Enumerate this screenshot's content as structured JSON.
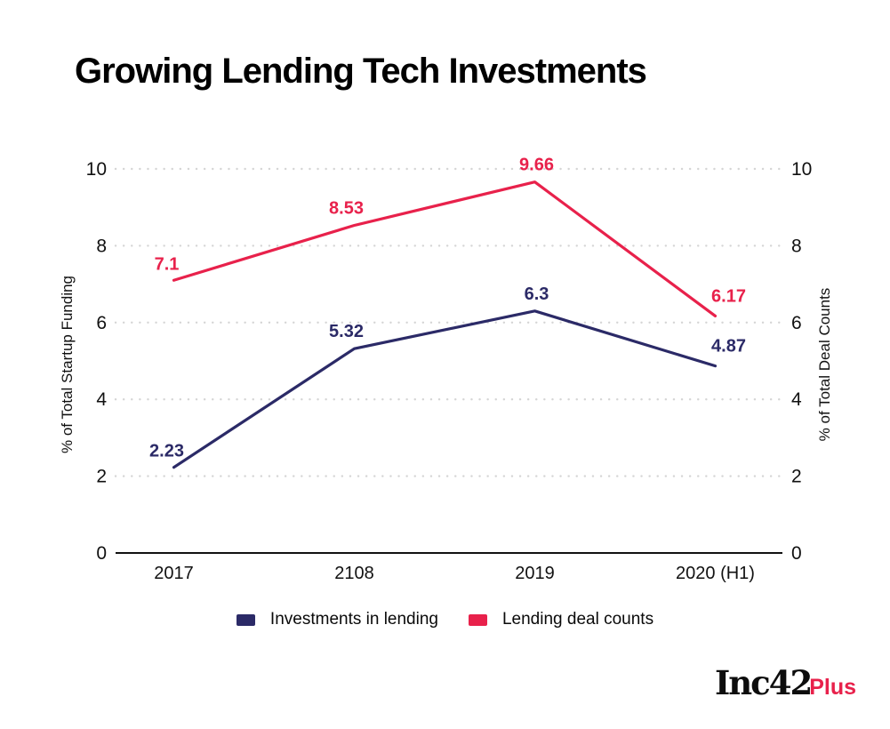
{
  "title": "Growing Lending Tech Investments",
  "chart_data": {
    "type": "line",
    "categories": [
      "2017",
      "2108",
      "2019",
      "2020 (H1)"
    ],
    "series": [
      {
        "name": "Investments in lending",
        "color": "#2B2A67",
        "values": [
          2.23,
          5.32,
          6.3,
          4.87
        ]
      },
      {
        "name": "Lending deal counts",
        "color": "#E8214B",
        "values": [
          7.1,
          8.53,
          9.66,
          6.17
        ]
      }
    ],
    "ylabel_left": "% of Total Startup Funding",
    "ylabel_right": "% of Total  Deal Counts",
    "yticks": [
      0,
      2,
      4,
      6,
      8,
      10
    ],
    "ylim": [
      0,
      10
    ],
    "grid": "horizontal-dotted",
    "legend_position": "bottom",
    "colors": {
      "gridline": "#D5D5D5",
      "axis_line": "#111111",
      "tick_text": "#111111"
    }
  },
  "branding": {
    "logo_black": "Inc42",
    "logo_red": "Plus",
    "logo_red_color": "#E8214B"
  }
}
